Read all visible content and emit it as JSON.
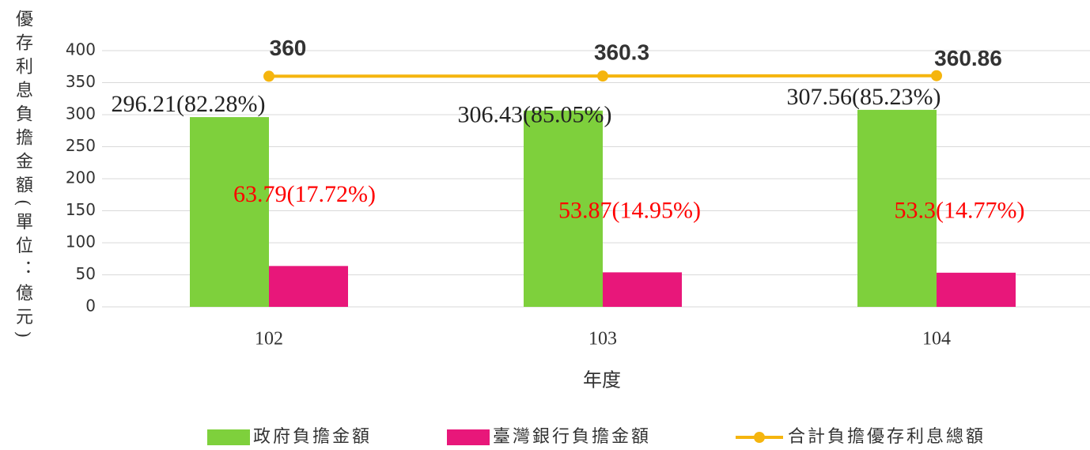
{
  "chart_data": {
    "type": "bar",
    "categories": [
      "102",
      "103",
      "104"
    ],
    "x_label": "年度",
    "y_label": "優存利息負擔金額(單位：億元)",
    "ylim": [
      0,
      400
    ],
    "yticks": [
      0,
      50,
      100,
      150,
      200,
      250,
      300,
      350,
      400
    ],
    "grid": true,
    "legend": "bottom",
    "series": [
      {
        "name": "政府負擔金額",
        "color": "#7ed03c",
        "type": "bar",
        "values": [
          296.21,
          306.43,
          307.56
        ],
        "value_labels": [
          "296.21(82.28%)",
          "306.43(85.05%)",
          "307.56(85.23%)"
        ],
        "label_color": "#222222"
      },
      {
        "name": "臺灣銀行負擔金額",
        "color": "#e8177a",
        "type": "bar",
        "values": [
          63.79,
          53.87,
          53.3
        ],
        "value_labels": [
          "63.79(17.72%)",
          "53.87(14.95%)",
          "53.3(14.77%)"
        ],
        "label_color": "#ff0000"
      },
      {
        "name": "合計負擔優存利息總額",
        "color": "#f5b50e",
        "type": "line",
        "values": [
          360,
          360.3,
          360.86
        ]
      }
    ]
  }
}
